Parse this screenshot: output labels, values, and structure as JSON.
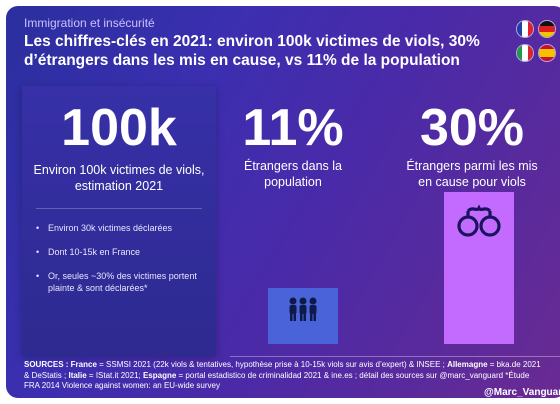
{
  "header": {
    "subtitle": "Immigration et insécurité",
    "headline": "Les chiffres-clés en 2021: environ 100k victimes de viols, 30% d’étrangers dans les mis en cause, vs 11% de la population"
  },
  "flags": [
    "france-flag",
    "germany-flag",
    "italy-flag",
    "spain-flag"
  ],
  "left_panel": {
    "value": "100k",
    "description": "Environ 100k victimes de viols, estimation 2021",
    "bullets": [
      "Environ 30k victimes déclarées",
      "Dont 10-15k en France",
      "Or, seules ~30% des victimes portent plainte & sont déclarées*"
    ]
  },
  "stat_population": {
    "value": "11%",
    "description": "Étrangers dans la population",
    "share": 11,
    "color": "#4a63d8",
    "icon": "people-icon"
  },
  "stat_accused": {
    "value": "30%",
    "description": "Étrangers parmi les mis en cause pour viols",
    "share": 30,
    "color": "#c46bff",
    "icon": "handcuffs-icon"
  },
  "footer": {
    "sources_label": "SOURCES : France",
    "sources_france": " = SSMSI 2021 (22k viols & tentatives, hypothèse prise à 10-15k viols sur avis d’expert) & INSEE ; ",
    "allemagne_label": "Allemagne",
    "allemagne_text": " = bka.de 2021 & DeStatis ; ",
    "italie_label": "Italie",
    "italie_text": " = IStat.it 2021; ",
    "espagne_label": "Espagne",
    "espagne_text": " = portal estadistico de criminalidad 2021 & ine.es ; détail des sources sur @marc_vanguard",
    "note": "    *Étude FRA 2014 Violence against women: an EU-wide survey",
    "handle": "@Marc_Vanguard"
  }
}
